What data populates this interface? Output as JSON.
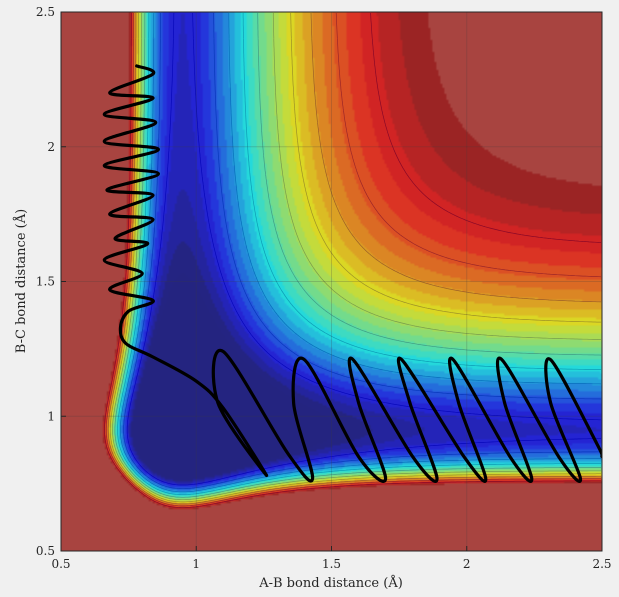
{
  "chart_data": {
    "type": "contour",
    "xlabel": "A-B bond distance (Å)",
    "ylabel": "B-C bond distance (Å)",
    "xlim": [
      0.5,
      2.5
    ],
    "ylim": [
      0.5,
      2.5
    ],
    "xticks": [
      0.5,
      1,
      1.5,
      2,
      2.5
    ],
    "yticks": [
      0.5,
      1,
      1.5,
      2,
      2.5
    ],
    "xtick_labels": [
      "0.5",
      "1",
      "1.5",
      "2",
      "2.5"
    ],
    "ytick_labels": [
      "0.5",
      "1",
      "1.5",
      "2",
      "2.5"
    ],
    "grid": true,
    "colormap": "jet",
    "surface": {
      "model": "London-Eyring-Polanyi-Sato style potential energy surface for A + BC -> AB + C",
      "equilibrium_bond_distance": 0.95,
      "plateau_color": "#a84440"
    },
    "trajectory": {
      "color": "#000000",
      "points": [
        [
          0.78,
          2.3
        ],
        [
          0.84,
          2.27
        ],
        [
          0.68,
          2.2
        ],
        [
          0.84,
          2.18
        ],
        [
          0.66,
          2.12
        ],
        [
          0.85,
          2.09
        ],
        [
          0.66,
          2.02
        ],
        [
          0.86,
          1.99
        ],
        [
          0.66,
          1.93
        ],
        [
          0.86,
          1.9
        ],
        [
          0.67,
          1.84
        ],
        [
          0.84,
          1.82
        ],
        [
          0.68,
          1.75
        ],
        [
          0.84,
          1.73
        ],
        [
          0.7,
          1.66
        ],
        [
          0.82,
          1.64
        ],
        [
          0.66,
          1.58
        ],
        [
          0.8,
          1.53
        ],
        [
          0.68,
          1.47
        ],
        [
          0.84,
          1.43
        ],
        [
          0.75,
          1.39
        ],
        [
          0.72,
          1.33
        ],
        [
          0.74,
          1.27
        ],
        [
          0.84,
          1.22
        ],
        [
          1.0,
          1.13
        ],
        [
          1.1,
          1.03
        ],
        [
          1.26,
          0.78
        ],
        [
          1.08,
          1.05
        ],
        [
          1.1,
          1.24
        ],
        [
          1.34,
          0.86
        ],
        [
          1.43,
          0.77
        ],
        [
          1.36,
          1.05
        ],
        [
          1.4,
          1.21
        ],
        [
          1.6,
          0.85
        ],
        [
          1.7,
          0.77
        ],
        [
          1.6,
          1.05
        ],
        [
          1.58,
          1.21
        ],
        [
          1.8,
          0.85
        ],
        [
          1.89,
          0.77
        ],
        [
          1.79,
          1.05
        ],
        [
          1.76,
          1.21
        ],
        [
          1.99,
          0.85
        ],
        [
          2.07,
          0.77
        ],
        [
          1.97,
          1.05
        ],
        [
          1.95,
          1.21
        ],
        [
          2.16,
          0.85
        ],
        [
          2.24,
          0.77
        ],
        [
          2.14,
          1.05
        ],
        [
          2.13,
          1.21
        ],
        [
          2.34,
          0.85
        ],
        [
          2.42,
          0.77
        ],
        [
          2.31,
          1.05
        ],
        [
          2.31,
          1.21
        ],
        [
          2.48,
          0.9
        ],
        [
          2.5,
          0.85
        ]
      ]
    }
  }
}
